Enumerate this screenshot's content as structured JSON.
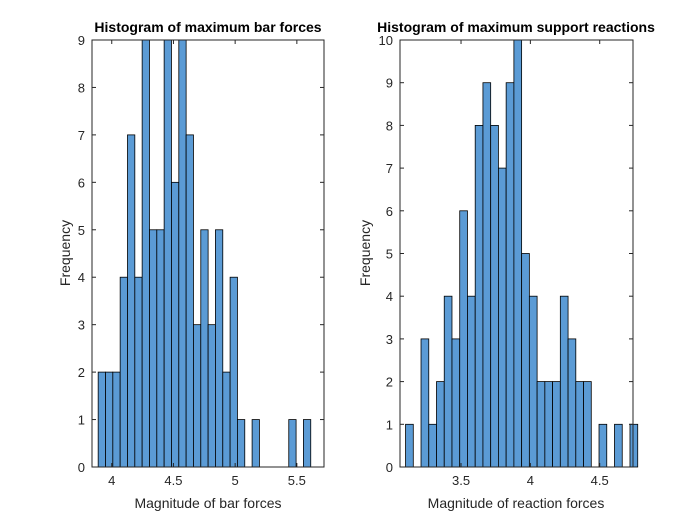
{
  "figure": {
    "background": "#ffffff"
  },
  "chart_data": [
    {
      "type": "bar",
      "title": "Histogram of maximum bar forces",
      "xlabel": "Magnitude of bar forces",
      "ylabel": "Frequency",
      "xlim": [
        3.84,
        5.72
      ],
      "ylim": [
        0,
        9
      ],
      "xticks": [
        4,
        4.5,
        5,
        5.5
      ],
      "xtick_labels": [
        "4",
        "4.5",
        "5",
        "5.5"
      ],
      "yticks": [
        0,
        1,
        2,
        3,
        4,
        5,
        6,
        7,
        8,
        9
      ],
      "ytick_labels": [
        "0",
        "1",
        "2",
        "3",
        "4",
        "5",
        "6",
        "7",
        "8",
        "9"
      ],
      "bin_start": 3.89,
      "bin_width": 0.0594,
      "values": [
        2,
        2,
        2,
        4,
        7,
        4,
        9,
        5,
        5,
        9,
        6,
        9,
        7,
        3,
        5,
        3,
        5,
        2,
        4,
        1,
        0,
        1,
        0,
        0,
        0,
        0,
        1,
        0,
        1
      ],
      "bar_color": "#5b9bd5",
      "edge_color": "#000000",
      "grid": false
    },
    {
      "type": "bar",
      "title": "Histogram of maximum support reactions",
      "xlabel": "Magnitude of reaction forces",
      "ylabel": "Frequency",
      "xlim": [
        3.06,
        4.74
      ],
      "ylim": [
        0,
        10
      ],
      "xticks": [
        3.5,
        4,
        4.5
      ],
      "xtick_labels": [
        "3.5",
        "4",
        "4.5"
      ],
      "yticks": [
        0,
        1,
        2,
        3,
        4,
        5,
        6,
        7,
        8,
        9,
        10
      ],
      "ytick_labels": [
        "0",
        "1",
        "2",
        "3",
        "4",
        "5",
        "6",
        "7",
        "8",
        "9",
        "10"
      ],
      "bin_start": 3.1,
      "bin_width": 0.0558,
      "values": [
        1,
        0,
        3,
        1,
        2,
        4,
        3,
        6,
        4,
        8,
        9,
        8,
        7,
        9,
        10,
        5,
        4,
        2,
        2,
        2,
        4,
        3,
        2,
        2,
        0,
        1,
        0,
        1,
        0,
        1
      ],
      "bar_color": "#5b9bd5",
      "edge_color": "#000000",
      "grid": false
    }
  ]
}
